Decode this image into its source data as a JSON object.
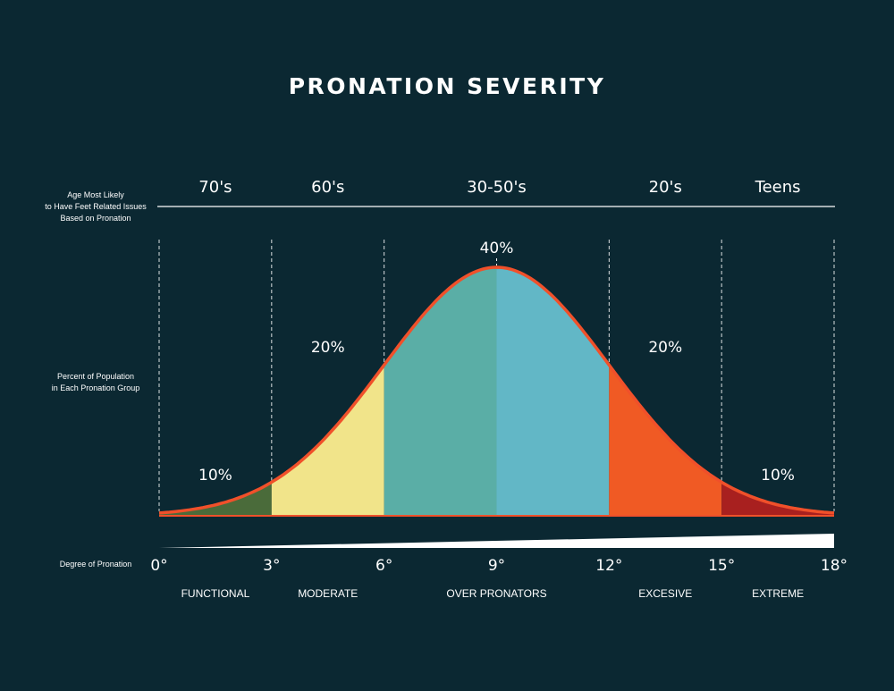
{
  "chart_data": {
    "type": "area",
    "title": "PRONATION SEVERITY",
    "age_row_label": [
      "Age Most Likely",
      "to Have Feet Related Issues",
      "Based on Pronation"
    ],
    "percent_row_label": [
      "Percent of Population",
      "in Each Pronation Group"
    ],
    "degree_row_label": "Degree of Pronation",
    "x_ticks": [
      "0°",
      "3°",
      "6°",
      "9°",
      "12°",
      "15°",
      "18°"
    ],
    "x_range": [
      0,
      18
    ],
    "groups": [
      {
        "from": 0,
        "to": 3,
        "age": "70's",
        "percent_label": "10%",
        "category": "FUNCTIONAL",
        "color": "#4a6b3a"
      },
      {
        "from": 3,
        "to": 6,
        "age": "60's",
        "percent_label": "20%",
        "category": "MODERATE",
        "color": "#f1e48a"
      },
      {
        "from": 6,
        "to": 12,
        "age": "30-50's",
        "percent_label": "40%",
        "category": "OVER PRONATORS",
        "color": "#5aaea6",
        "color_right": "#62b7c6"
      },
      {
        "from": 12,
        "to": 15,
        "age": "20's",
        "percent_label": "20%",
        "category": "EXCESIVE",
        "color": "#f05a24"
      },
      {
        "from": 15,
        "to": 18,
        "age": "Teens",
        "percent_label": "10%",
        "category": "EXTREME",
        "color": "#a8201f"
      }
    ],
    "curve": {
      "mean": 9,
      "sd": 3,
      "color": "#f0502a"
    }
  }
}
